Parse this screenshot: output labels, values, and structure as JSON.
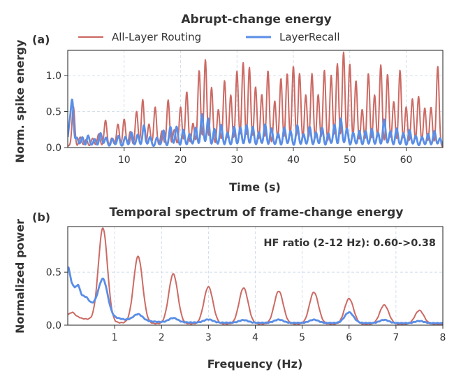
{
  "colors": {
    "all_layer": "#cc6a64",
    "layerrecall": "#5a8ee6",
    "grid": "#c9d6e6",
    "text": "#333333"
  },
  "legend": {
    "items": [
      "All-Layer Routing",
      "LayerRecall"
    ],
    "placement": "top-center"
  },
  "chart_data": [
    {
      "panel": "(a)",
      "type": "line",
      "title": "Abrupt-change energy",
      "xlabel": "Time (s)",
      "ylabel": "Norm. spike energy",
      "xlim": [
        0,
        66.5
      ],
      "ylim": [
        0,
        1.35
      ],
      "xticks": [
        10,
        20,
        30,
        40,
        50,
        60
      ],
      "yticks": [
        0.0,
        0.5,
        1.0
      ],
      "grid": true,
      "series": [
        {
          "name": "All-Layer Routing",
          "peaks": [
            [
              1.0,
              0.55
            ],
            [
              2.2,
              0.12
            ],
            [
              3.3,
              0.1
            ],
            [
              4.4,
              0.1
            ],
            [
              5.5,
              0.18
            ],
            [
              6.7,
              0.35
            ],
            [
              7.8,
              0.12
            ],
            [
              8.9,
              0.3
            ],
            [
              10.0,
              0.38
            ],
            [
              11.1,
              0.2
            ],
            [
              12.2,
              0.48
            ],
            [
              13.3,
              0.65
            ],
            [
              14.4,
              0.3
            ],
            [
              15.5,
              0.55
            ],
            [
              16.7,
              0.2
            ],
            [
              17.8,
              0.65
            ],
            [
              18.9,
              0.22
            ],
            [
              20.0,
              0.55
            ],
            [
              21.1,
              0.75
            ],
            [
              22.2,
              0.32
            ],
            [
              23.3,
              1.05
            ],
            [
              24.4,
              1.2
            ],
            [
              25.5,
              0.82
            ],
            [
              26.7,
              0.5
            ],
            [
              27.8,
              0.92
            ],
            [
              28.9,
              0.7
            ],
            [
              30.0,
              1.05
            ],
            [
              31.1,
              1.15
            ],
            [
              32.2,
              1.1
            ],
            [
              33.3,
              0.82
            ],
            [
              34.4,
              0.72
            ],
            [
              35.5,
              1.05
            ],
            [
              36.7,
              0.62
            ],
            [
              37.8,
              0.95
            ],
            [
              38.9,
              1.0
            ],
            [
              40.0,
              1.12
            ],
            [
              41.1,
              1.0
            ],
            [
              42.2,
              0.72
            ],
            [
              43.3,
              1.0
            ],
            [
              44.4,
              0.72
            ],
            [
              45.5,
              1.05
            ],
            [
              46.7,
              0.98
            ],
            [
              47.8,
              1.15
            ],
            [
              48.9,
              1.3
            ],
            [
              50.0,
              1.15
            ],
            [
              51.1,
              0.9
            ],
            [
              52.2,
              0.52
            ],
            [
              53.3,
              1.0
            ],
            [
              54.4,
              0.72
            ],
            [
              55.5,
              1.12
            ],
            [
              56.7,
              1.0
            ],
            [
              57.8,
              0.62
            ],
            [
              58.9,
              1.05
            ],
            [
              60.0,
              0.55
            ],
            [
              61.1,
              0.65
            ],
            [
              62.2,
              0.7
            ],
            [
              63.3,
              0.52
            ],
            [
              64.4,
              0.55
            ],
            [
              65.6,
              1.1
            ]
          ]
        },
        {
          "name": "LayerRecall",
          "peaks": [
            [
              0.3,
              0.25
            ],
            [
              0.8,
              0.62
            ],
            [
              1.6,
              0.12
            ],
            [
              2.6,
              0.12
            ],
            [
              3.6,
              0.15
            ],
            [
              4.8,
              0.1
            ],
            [
              5.8,
              0.18
            ],
            [
              6.8,
              0.12
            ],
            [
              7.9,
              0.1
            ],
            [
              9.0,
              0.15
            ],
            [
              10.2,
              0.12
            ],
            [
              11.3,
              0.2
            ],
            [
              12.4,
              0.15
            ],
            [
              13.5,
              0.3
            ],
            [
              14.6,
              0.12
            ],
            [
              15.8,
              0.12
            ],
            [
              17.0,
              0.22
            ],
            [
              18.2,
              0.26
            ],
            [
              19.3,
              0.28
            ],
            [
              20.5,
              0.22
            ],
            [
              21.6,
              0.18
            ],
            [
              22.7,
              0.25
            ],
            [
              23.8,
              0.45
            ],
            [
              24.9,
              0.38
            ],
            [
              26.0,
              0.24
            ],
            [
              27.2,
              0.3
            ],
            [
              28.3,
              0.18
            ],
            [
              29.5,
              0.28
            ],
            [
              30.6,
              0.25
            ],
            [
              31.7,
              0.3
            ],
            [
              32.8,
              0.26
            ],
            [
              33.9,
              0.2
            ],
            [
              35.0,
              0.3
            ],
            [
              36.1,
              0.25
            ],
            [
              37.3,
              0.18
            ],
            [
              38.4,
              0.25
            ],
            [
              39.5,
              0.22
            ],
            [
              40.7,
              0.28
            ],
            [
              41.8,
              0.18
            ],
            [
              42.9,
              0.26
            ],
            [
              44.0,
              0.2
            ],
            [
              45.1,
              0.25
            ],
            [
              46.2,
              0.18
            ],
            [
              47.3,
              0.3
            ],
            [
              48.4,
              0.38
            ],
            [
              49.5,
              0.25
            ],
            [
              50.6,
              0.18
            ],
            [
              51.7,
              0.22
            ],
            [
              52.8,
              0.2
            ],
            [
              53.9,
              0.25
            ],
            [
              55.0,
              0.18
            ],
            [
              56.1,
              0.38
            ],
            [
              57.2,
              0.2
            ],
            [
              58.3,
              0.25
            ],
            [
              59.5,
              0.18
            ],
            [
              60.6,
              0.22
            ],
            [
              61.7,
              0.15
            ],
            [
              62.8,
              0.12
            ],
            [
              63.9,
              0.18
            ],
            [
              65.0,
              0.2
            ],
            [
              66.0,
              0.12
            ]
          ]
        }
      ]
    },
    {
      "panel": "(b)",
      "type": "line",
      "title": "Temporal spectrum of frame-change energy",
      "xlabel": "Frequency (Hz)",
      "ylabel": "Normalized power",
      "xlim": [
        0,
        8
      ],
      "ylim": [
        0,
        0.93
      ],
      "xticks": [
        1,
        2,
        3,
        4,
        5,
        6,
        7,
        8
      ],
      "yticks": [
        0.0,
        0.5
      ],
      "grid": true,
      "annotation": "HF ratio (2-12 Hz): 0.60->0.38",
      "series": [
        {
          "name": "All-Layer Routing",
          "base": [
            [
              0.02,
              0.1
            ],
            [
              0.1,
              0.12
            ],
            [
              0.2,
              0.08
            ],
            [
              0.3,
              0.06
            ],
            [
              0.45,
              0.05
            ],
            [
              0.6,
              0.04
            ],
            [
              0.8,
              0.03
            ],
            [
              1.0,
              0.02
            ],
            [
              1.5,
              0.015
            ],
            [
              2.0,
              0.01
            ],
            [
              3.0,
              0.008
            ],
            [
              8.0,
              0.005
            ]
          ],
          "peaks": [
            [
              0.75,
              0.88
            ],
            [
              1.5,
              0.63
            ],
            [
              2.25,
              0.47
            ],
            [
              3.0,
              0.35
            ],
            [
              3.75,
              0.34
            ],
            [
              4.5,
              0.31
            ],
            [
              5.25,
              0.3
            ],
            [
              6.0,
              0.24
            ],
            [
              6.75,
              0.18
            ],
            [
              7.5,
              0.13
            ]
          ]
        },
        {
          "name": "LayerRecall",
          "base": [
            [
              0.02,
              0.54
            ],
            [
              0.08,
              0.4
            ],
            [
              0.15,
              0.35
            ],
            [
              0.22,
              0.38
            ],
            [
              0.3,
              0.28
            ],
            [
              0.4,
              0.26
            ],
            [
              0.5,
              0.2
            ],
            [
              0.6,
              0.16
            ],
            [
              0.7,
              0.12
            ],
            [
              0.85,
              0.1
            ],
            [
              1.0,
              0.07
            ],
            [
              1.2,
              0.05
            ],
            [
              1.5,
              0.04
            ],
            [
              2.0,
              0.025
            ],
            [
              3.0,
              0.02
            ],
            [
              8.0,
              0.015
            ]
          ],
          "peaks": [
            [
              0.75,
              0.32
            ],
            [
              1.5,
              0.06
            ],
            [
              2.25,
              0.04
            ],
            [
              3.0,
              0.03
            ],
            [
              3.75,
              0.025
            ],
            [
              4.5,
              0.03
            ],
            [
              5.25,
              0.03
            ],
            [
              6.0,
              0.1
            ],
            [
              6.75,
              0.03
            ],
            [
              7.5,
              0.02
            ]
          ]
        }
      ]
    }
  ]
}
